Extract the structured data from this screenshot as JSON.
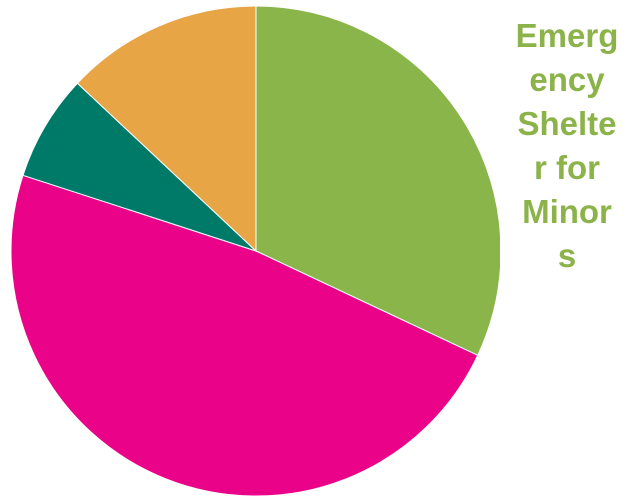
{
  "chart_data": {
    "type": "pie",
    "title": "Emergency Shelter for Minors",
    "title_lines": [
      "Emerg",
      "ency",
      "Shelte",
      "r for",
      "Minor",
      "s"
    ],
    "start_angle_deg": 0,
    "direction": "clockwise",
    "legend": "none",
    "slices": [
      {
        "value": 32,
        "color": "#8ab54a"
      },
      {
        "value": 48,
        "color": "#ea0389"
      },
      {
        "value": 7,
        "color": "#007a68"
      },
      {
        "value": 13,
        "color": "#e8a545"
      }
    ]
  }
}
